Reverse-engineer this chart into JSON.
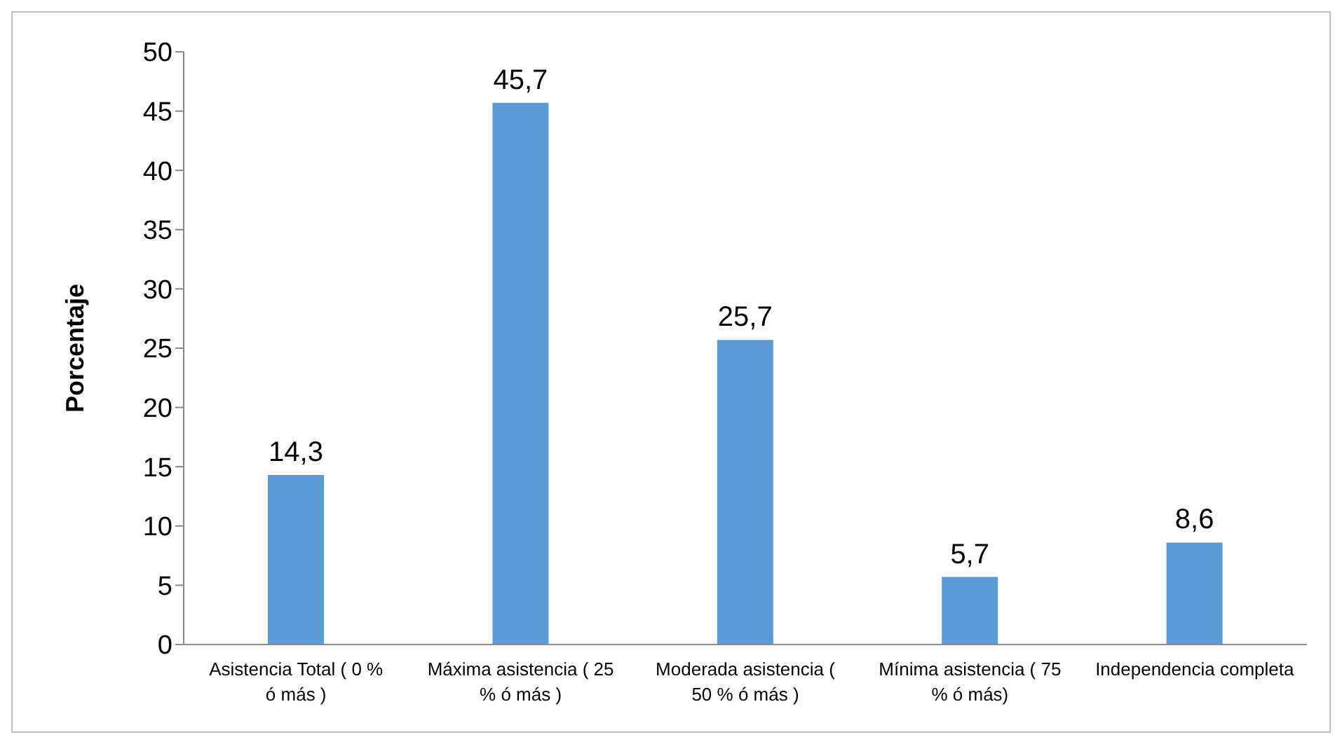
{
  "chart_data": {
    "type": "bar",
    "ylabel": "Porcentaje",
    "categories": [
      "Asistencia Total ( 0 % ó más )",
      "Máxima asistencia ( 25 % ó más )",
      "Moderada asistencia ( 50 % ó más )",
      "Mínima asistencia ( 75 % ó más)",
      "Independencia completa"
    ],
    "values": [
      14.3,
      45.7,
      25.7,
      5.7,
      8.6
    ],
    "value_labels": [
      "14,3",
      "45,7",
      "25,7",
      "5,7",
      "8,6"
    ],
    "color": "#5b9bd5",
    "ylim": [
      0,
      50
    ],
    "yticks": [
      0,
      5,
      10,
      15,
      20,
      25,
      30,
      35,
      40,
      45,
      50
    ],
    "grid": false,
    "legend": false
  }
}
